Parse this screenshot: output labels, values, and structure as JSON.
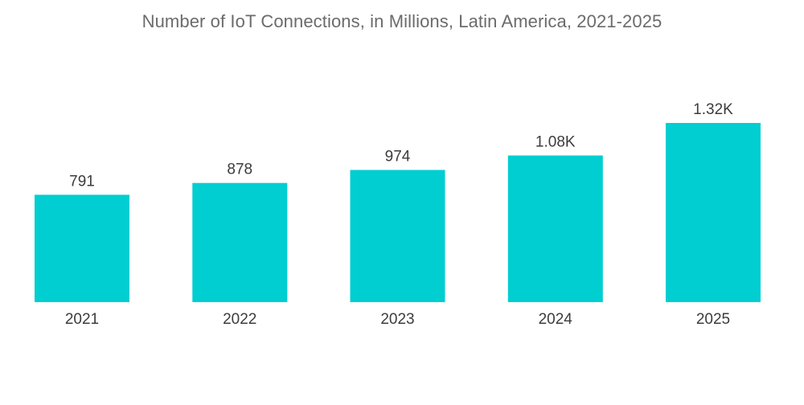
{
  "chart_data": {
    "type": "bar",
    "title": "Number of IoT Connections, in Millions, Latin America, 2021-2025",
    "xlabel": "",
    "ylabel": "",
    "categories": [
      "2021",
      "2022",
      "2023",
      "2024",
      "2025"
    ],
    "values": [
      791,
      878,
      974,
      1080,
      1320
    ],
    "value_labels": [
      "791",
      "878",
      "974",
      "1.08K",
      "1.32K"
    ],
    "ylim": [
      0,
      1320
    ],
    "grid": false,
    "bar_color": "#00ced1"
  }
}
